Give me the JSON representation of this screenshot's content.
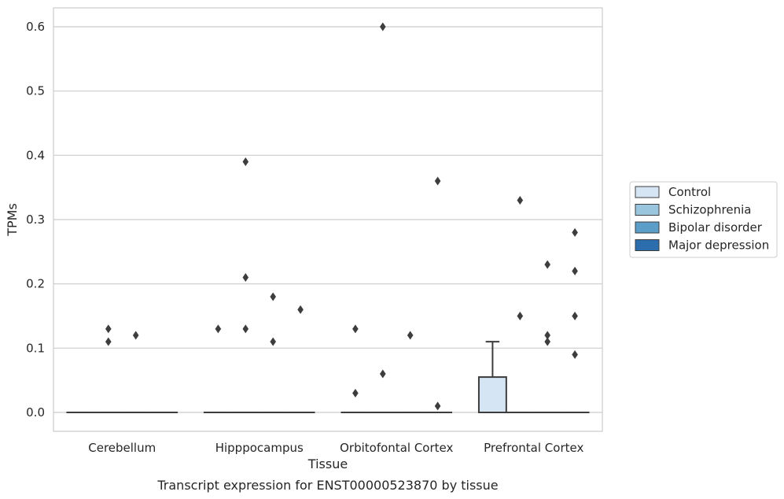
{
  "chart_data": {
    "type": "box",
    "title": "",
    "caption": "Transcript expression for ENST00000523870 by tissue",
    "xlabel": "Tissue",
    "ylabel": "TPMs",
    "ylim": [
      -0.03,
      0.63
    ],
    "yticks": [
      0.0,
      0.1,
      0.2,
      0.3,
      0.4,
      0.5,
      0.6
    ],
    "ytick_labels": [
      "0.0",
      "0.1",
      "0.2",
      "0.3",
      "0.4",
      "0.5",
      "0.6"
    ],
    "grid": "horizontal",
    "legend_position": "right",
    "categories": [
      "Cerebellum",
      "Hipppocampus",
      "Orbitofontal Cortex",
      "Prefrontal Cortex"
    ],
    "series": [
      {
        "name": "Control",
        "color": "#d6e5f4",
        "boxes": [
          {
            "q1": 0,
            "median": 0,
            "q3": 0,
            "whisker_low": 0,
            "whisker_high": 0,
            "outliers": []
          },
          {
            "q1": 0,
            "median": 0,
            "q3": 0,
            "whisker_low": 0,
            "whisker_high": 0,
            "outliers": [
              0.13
            ]
          },
          {
            "q1": 0,
            "median": 0,
            "q3": 0,
            "whisker_low": 0,
            "whisker_high": 0,
            "outliers": [
              0.13,
              0.03
            ]
          },
          {
            "q1": 0,
            "median": 0,
            "q3": 0.055,
            "whisker_low": 0,
            "whisker_high": 0.11,
            "outliers": []
          }
        ]
      },
      {
        "name": "Schizophrenia",
        "color": "#9ac5de",
        "boxes": [
          {
            "q1": 0,
            "median": 0,
            "q3": 0,
            "whisker_low": 0,
            "whisker_high": 0,
            "outliers": [
              0.13,
              0.11
            ]
          },
          {
            "q1": 0,
            "median": 0,
            "q3": 0,
            "whisker_low": 0,
            "whisker_high": 0,
            "outliers": [
              0.39,
              0.21,
              0.13
            ]
          },
          {
            "q1": 0,
            "median": 0,
            "q3": 0,
            "whisker_low": 0,
            "whisker_high": 0,
            "outliers": [
              0.6,
              0.06
            ]
          },
          {
            "q1": 0,
            "median": 0,
            "q3": 0,
            "whisker_low": 0,
            "whisker_high": 0,
            "outliers": [
              0.33,
              0.15
            ]
          }
        ]
      },
      {
        "name": "Bipolar disorder",
        "color": "#5b9ec9",
        "boxes": [
          {
            "q1": 0,
            "median": 0,
            "q3": 0,
            "whisker_low": 0,
            "whisker_high": 0,
            "outliers": [
              0.12
            ]
          },
          {
            "q1": 0,
            "median": 0,
            "q3": 0,
            "whisker_low": 0,
            "whisker_high": 0,
            "outliers": [
              0.18,
              0.11
            ]
          },
          {
            "q1": 0,
            "median": 0,
            "q3": 0,
            "whisker_low": 0,
            "whisker_high": 0,
            "outliers": [
              0.12
            ]
          },
          {
            "q1": 0,
            "median": 0,
            "q3": 0,
            "whisker_low": 0,
            "whisker_high": 0,
            "outliers": [
              0.23,
              0.12,
              0.11
            ]
          }
        ]
      },
      {
        "name": "Major depression",
        "color": "#2c6ead",
        "boxes": [
          {
            "q1": 0,
            "median": 0,
            "q3": 0,
            "whisker_low": 0,
            "whisker_high": 0,
            "outliers": []
          },
          {
            "q1": 0,
            "median": 0,
            "q3": 0,
            "whisker_low": 0,
            "whisker_high": 0,
            "outliers": [
              0.16
            ]
          },
          {
            "q1": 0,
            "median": 0,
            "q3": 0,
            "whisker_low": 0,
            "whisker_high": 0,
            "outliers": [
              0.36,
              0.01
            ]
          },
          {
            "q1": 0,
            "median": 0,
            "q3": 0,
            "whisker_low": 0,
            "whisker_high": 0,
            "outliers": [
              0.09
            ]
          }
        ]
      }
    ],
    "extra_outliers": [
      {
        "category_index": 3,
        "series_index": 3,
        "values": [
          0.28,
          0.22,
          0.15
        ]
      }
    ]
  }
}
